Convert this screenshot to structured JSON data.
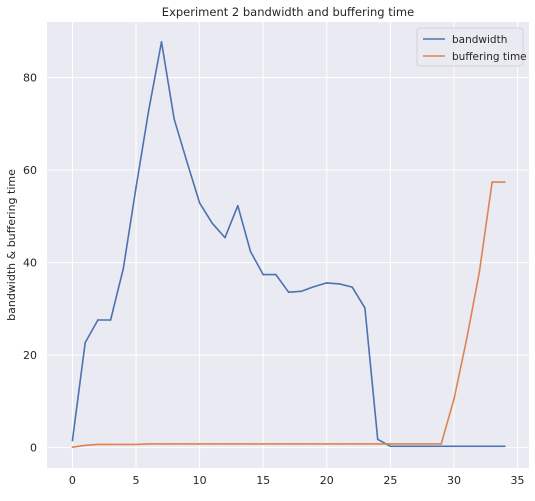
{
  "chart_data": {
    "type": "line",
    "title": "Experiment 2 bandwidth and buffering time",
    "xlabel": "",
    "ylabel": "bandwidth & buffering time",
    "xlim": [
      -2,
      35.9
    ],
    "ylim": [
      -4.4,
      92
    ],
    "x_ticks": [
      0,
      5,
      10,
      15,
      20,
      25,
      30,
      35
    ],
    "y_ticks": [
      0,
      20,
      40,
      60,
      80
    ],
    "grid": true,
    "legend_position": "top-right",
    "series": [
      {
        "name": "bandwidth",
        "color": "#4c72b0",
        "x": [
          0,
          1,
          2,
          3,
          4,
          5,
          6,
          7,
          8,
          9,
          10,
          11,
          12,
          13,
          14,
          15,
          16,
          17,
          18,
          19,
          20,
          21,
          22,
          23,
          24,
          25,
          26,
          27,
          28,
          29,
          30,
          31,
          32,
          33,
          34
        ],
        "values": [
          1.5,
          22.7,
          27.6,
          27.6,
          38.7,
          56.2,
          72.9,
          87.7,
          71.0,
          61.8,
          52.9,
          48.5,
          45.4,
          52.3,
          42.4,
          37.4,
          37.4,
          33.6,
          33.8,
          34.8,
          35.6,
          35.4,
          34.7,
          30.2,
          1.8,
          0.3,
          0.3,
          0.3,
          0.3,
          0.3,
          0.3,
          0.3,
          0.3,
          0.3,
          0.3
        ]
      },
      {
        "name": "buffering time",
        "color": "#dd8452",
        "x": [
          0,
          1,
          2,
          3,
          4,
          5,
          6,
          7,
          8,
          9,
          10,
          11,
          12,
          13,
          14,
          15,
          16,
          17,
          18,
          19,
          20,
          21,
          22,
          23,
          24,
          25,
          26,
          27,
          28,
          29,
          30,
          31,
          32,
          33,
          34
        ],
        "values": [
          0.1,
          0.5,
          0.7,
          0.7,
          0.7,
          0.7,
          0.8,
          0.8,
          0.8,
          0.8,
          0.8,
          0.8,
          0.8,
          0.8,
          0.8,
          0.8,
          0.8,
          0.8,
          0.8,
          0.8,
          0.8,
          0.8,
          0.8,
          0.8,
          0.8,
          0.8,
          0.8,
          0.8,
          0.8,
          0.8,
          10.5,
          23.5,
          38.0,
          57.4,
          57.4
        ]
      }
    ]
  }
}
